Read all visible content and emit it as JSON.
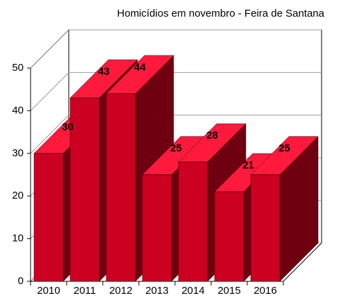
{
  "chart_data": {
    "type": "bar3d",
    "title": "Homicídios em novembro - Feira de Santana",
    "categories": [
      "2010",
      "2011",
      "2012",
      "2013",
      "2014",
      "2015",
      "2016"
    ],
    "values": [
      30,
      43,
      44,
      25,
      28,
      21,
      25
    ],
    "color": "#cc0020",
    "ylim": [
      0,
      50
    ],
    "yticks": [
      0,
      10,
      20,
      30,
      40,
      50
    ],
    "grid": true
  }
}
